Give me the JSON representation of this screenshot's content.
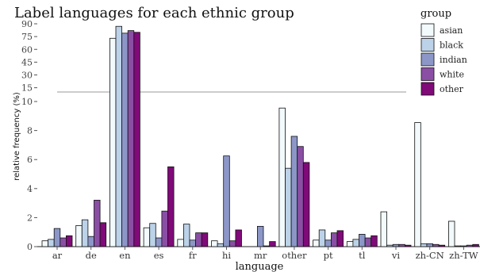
{
  "chart_data": {
    "type": "bar",
    "title": "Label languages for each ethnic group",
    "xlabel": "language",
    "ylabel": "relative frequency (%)",
    "categories": [
      "ar",
      "de",
      "en",
      "es",
      "fr",
      "hi",
      "mr",
      "other",
      "pt",
      "tl",
      "vi",
      "zh-CN",
      "zh-TW"
    ],
    "axis_break": true,
    "lower_ylim": [
      0,
      10
    ],
    "lower_yticks": [
      "0",
      "2",
      "4",
      "6",
      "8",
      "10"
    ],
    "upper_ylim": [
      10,
      90
    ],
    "upper_yticks": [
      "15",
      "30",
      "45",
      "60",
      "75",
      "90"
    ],
    "legend_title": "group",
    "legend_position": "top-right",
    "grid": false,
    "series": [
      {
        "name": "asian",
        "color": "#f2fafc",
        "values": [
          0.4,
          1.45,
          73,
          1.3,
          0.5,
          0.4,
          0.0,
          9.55,
          0.45,
          0.35,
          2.4,
          8.55,
          1.75
        ]
      },
      {
        "name": "black",
        "color": "#bcd2e8",
        "values": [
          0.5,
          1.85,
          87,
          1.6,
          1.55,
          0.2,
          0.0,
          5.4,
          1.15,
          0.5,
          0.1,
          0.2,
          0.05
        ]
      },
      {
        "name": "indian",
        "color": "#8c97c8",
        "values": [
          1.25,
          0.7,
          79,
          0.6,
          0.45,
          6.25,
          1.4,
          7.6,
          0.45,
          0.85,
          0.15,
          0.2,
          0.05
        ]
      },
      {
        "name": "white",
        "color": "#8a4fa4",
        "values": [
          0.6,
          3.2,
          82,
          2.45,
          0.95,
          0.4,
          0.05,
          6.9,
          0.95,
          0.6,
          0.15,
          0.15,
          0.1
        ]
      },
      {
        "name": "other",
        "color": "#7f0a78",
        "values": [
          0.75,
          1.65,
          80,
          5.5,
          0.95,
          1.15,
          0.35,
          5.8,
          1.1,
          0.75,
          0.1,
          0.1,
          0.15
        ]
      }
    ]
  }
}
